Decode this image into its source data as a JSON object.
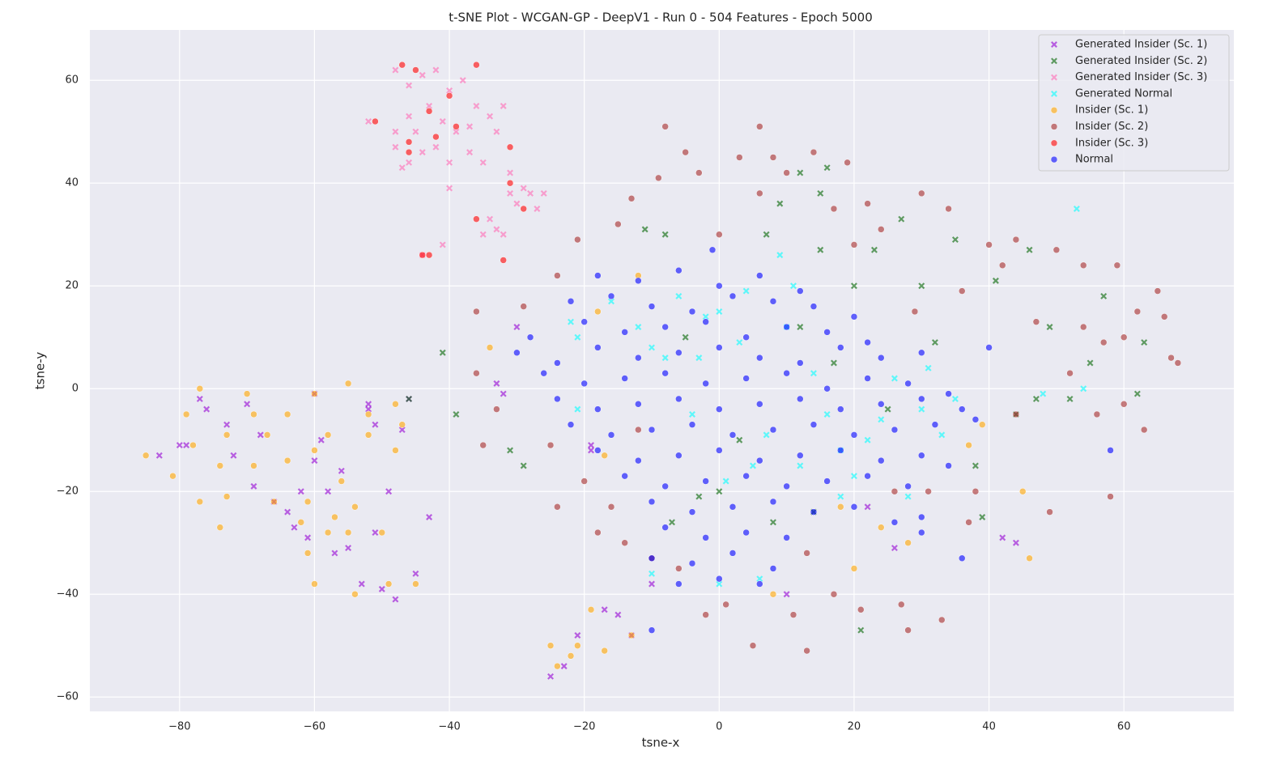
{
  "chart_data": {
    "type": "scatter",
    "title": "t-SNE Plot - WCGAN-GP - DeepV1 - Run 0 - 504 Features - Epoch 5000",
    "xlabel": "tsne-x",
    "ylabel": "tsne-y",
    "xlim": [
      -93.3,
      76.3
    ],
    "ylim": [
      -62.8,
      69.8
    ],
    "xticks": [
      {
        "value": -80,
        "label": "−80"
      },
      {
        "value": -60,
        "label": "−60"
      },
      {
        "value": -40,
        "label": "−40"
      },
      {
        "value": -20,
        "label": "−20"
      },
      0,
      20,
      40,
      60
    ],
    "yticks": [
      {
        "value": -60,
        "label": "−60"
      },
      {
        "value": -40,
        "label": "−40"
      },
      {
        "value": -20,
        "label": "−20"
      },
      0,
      20,
      40,
      60
    ],
    "grid": true,
    "legend": "upper right",
    "series": [
      {
        "name": "Generated Insider (Sc. 1)",
        "color": "#9400d3",
        "marker": "x",
        "x": [
          -83,
          -80,
          -77,
          -76,
          -73,
          -72,
          -70,
          -69,
          -68,
          -66,
          -64,
          -63,
          -62,
          -61,
          -60,
          -60,
          -59,
          -58,
          -57,
          -56,
          -55,
          -53,
          -52,
          -51,
          -51,
          -50,
          -49,
          -48,
          -46,
          -45,
          -43,
          -52,
          -47,
          -25,
          -23,
          -21,
          -17,
          -15,
          -13,
          -10,
          -19,
          10,
          22,
          26,
          42,
          44,
          -33,
          -32,
          -30,
          -19,
          -79
        ],
        "y": [
          -13,
          -11,
          -2,
          -4,
          -7,
          -13,
          -3,
          -19,
          -9,
          -22,
          -24,
          -27,
          -20,
          -29,
          -14,
          -1,
          -10,
          -20,
          -32,
          -16,
          -31,
          -38,
          -3,
          -7,
          -28,
          -39,
          -20,
          -41,
          -2,
          -36,
          -25,
          -4,
          -8,
          -56,
          -54,
          -48,
          -43,
          -44,
          -48,
          -38,
          -11,
          -40,
          -23,
          -31,
          -29,
          -30,
          1,
          -1,
          12,
          -12,
          -11
        ]
      },
      {
        "name": "Generated Insider (Sc. 2)",
        "color": "#006400",
        "marker": "x",
        "x": [
          -41,
          -39,
          -31,
          -29,
          -46,
          -11,
          -8,
          -5,
          -3,
          0,
          3,
          7,
          9,
          12,
          12,
          15,
          15,
          16,
          17,
          20,
          21,
          23,
          25,
          27,
          30,
          32,
          35,
          38,
          39,
          41,
          44,
          46,
          47,
          49,
          52,
          55,
          57,
          62,
          63,
          14,
          8,
          -7
        ],
        "y": [
          7,
          -5,
          -12,
          -15,
          -2,
          31,
          30,
          10,
          -21,
          -20,
          -10,
          30,
          36,
          42,
          12,
          38,
          27,
          43,
          5,
          20,
          -47,
          27,
          -4,
          33,
          20,
          9,
          29,
          -15,
          -25,
          21,
          -5,
          27,
          -2,
          12,
          -2,
          5,
          18,
          -1,
          9,
          -24,
          -26,
          -26
        ]
      },
      {
        "name": "Generated Insider (Sc. 3)",
        "color": "#ff69b4",
        "marker": "x",
        "x": [
          -48,
          -46,
          -44,
          -42,
          -40,
          -43,
          -41,
          -38,
          -36,
          -39,
          -46,
          -48,
          -44,
          -42,
          -46,
          -40,
          -37,
          -35,
          -33,
          -34,
          -32,
          -45,
          -47,
          -40,
          -41,
          -31,
          -30,
          -28,
          -27,
          -33,
          -35,
          -34,
          -32,
          -29,
          -26,
          -52,
          -48,
          -37,
          -31,
          -44
        ],
        "y": [
          62,
          59,
          61,
          62,
          58,
          55,
          52,
          60,
          55,
          50,
          53,
          50,
          46,
          47,
          44,
          44,
          46,
          44,
          50,
          53,
          55,
          50,
          43,
          39,
          28,
          38,
          36,
          38,
          35,
          31,
          30,
          33,
          30,
          39,
          38,
          52,
          47,
          51,
          42,
          26
        ]
      },
      {
        "name": "Generated Normal",
        "color": "#00ffff",
        "marker": "x",
        "x": [
          -22,
          -21,
          -16,
          -12,
          -8,
          -6,
          -4,
          -2,
          0,
          1,
          3,
          5,
          7,
          9,
          10,
          12,
          14,
          16,
          18,
          20,
          22,
          24,
          26,
          28,
          30,
          33,
          35,
          18,
          6,
          -10,
          0,
          53,
          48,
          54,
          -21,
          -10,
          -3,
          4,
          11,
          31
        ],
        "y": [
          13,
          10,
          17,
          12,
          6,
          18,
          -5,
          14,
          15,
          -18,
          9,
          -15,
          -9,
          26,
          12,
          -15,
          3,
          -5,
          -12,
          -17,
          -10,
          -6,
          2,
          -21,
          -4,
          -9,
          -2,
          -21,
          -37,
          -36,
          -38,
          35,
          -1,
          0,
          -4,
          8,
          6,
          19,
          20,
          4
        ]
      },
      {
        "name": "Insider (Sc. 1)",
        "color": "#ffa500",
        "marker": "o",
        "x": [
          -85,
          -81,
          -79,
          -78,
          -77,
          -77,
          -74,
          -74,
          -73,
          -73,
          -70,
          -69,
          -69,
          -67,
          -66,
          -64,
          -64,
          -62,
          -61,
          -61,
          -60,
          -60,
          -60,
          -58,
          -58,
          -57,
          -56,
          -55,
          -55,
          -54,
          -54,
          -52,
          -52,
          -50,
          -49,
          -48,
          -47,
          -48,
          -45,
          -34,
          -24,
          -25,
          -22,
          -21,
          -19,
          -17,
          -13,
          -12,
          -18,
          -17,
          8,
          18,
          20,
          24,
          28,
          37,
          39,
          45,
          46
        ],
        "y": [
          -13,
          -17,
          -5,
          -11,
          -22,
          0,
          -15,
          -27,
          -21,
          -9,
          -1,
          -5,
          -15,
          -9,
          -22,
          -5,
          -14,
          -26,
          -32,
          -22,
          -12,
          -1,
          -38,
          -9,
          -28,
          -25,
          -18,
          1,
          -28,
          -23,
          -40,
          -5,
          -9,
          -28,
          -38,
          -3,
          -7,
          -12,
          -38,
          8,
          -54,
          -50,
          -52,
          -50,
          -43,
          -51,
          -48,
          22,
          15,
          -13,
          -40,
          -23,
          -35,
          -27,
          -30,
          -11,
          -7,
          -20,
          -33
        ]
      },
      {
        "name": "Insider (Sc. 2)",
        "color": "#a52a2a",
        "marker": "o",
        "x": [
          -36,
          -36,
          -35,
          -33,
          -29,
          -24,
          -25,
          -24,
          -21,
          -20,
          -18,
          -16,
          -15,
          -14,
          -13,
          -12,
          -10,
          -9,
          -8,
          -6,
          -5,
          -3,
          -2,
          0,
          1,
          3,
          5,
          6,
          6,
          8,
          10,
          11,
          13,
          13,
          14,
          17,
          17,
          19,
          20,
          21,
          22,
          24,
          26,
          27,
          28,
          29,
          30,
          31,
          33,
          34,
          36,
          37,
          38,
          40,
          42,
          44,
          44,
          47,
          49,
          50,
          52,
          54,
          56,
          58,
          59,
          60,
          62,
          63,
          65,
          66,
          67,
          68,
          57,
          54,
          60
        ],
        "y": [
          15,
          3,
          -11,
          -4,
          16,
          22,
          -11,
          -23,
          29,
          -18,
          -28,
          -23,
          32,
          -30,
          37,
          -8,
          -33,
          41,
          51,
          -35,
          46,
          42,
          -44,
          30,
          -42,
          45,
          -50,
          51,
          38,
          45,
          42,
          -44,
          -51,
          -32,
          46,
          35,
          -40,
          44,
          28,
          -43,
          36,
          31,
          -20,
          -42,
          -47,
          15,
          38,
          -20,
          -45,
          35,
          19,
          -26,
          -20,
          28,
          24,
          -5,
          29,
          13,
          -24,
          27,
          3,
          24,
          -5,
          -21,
          24,
          -3,
          15,
          -8,
          19,
          14,
          6,
          5,
          9,
          12,
          10
        ]
      },
      {
        "name": "Insider (Sc. 3)",
        "color": "#ff0000",
        "marker": "o",
        "x": [
          -47,
          -45,
          -36,
          -51,
          -43,
          -40,
          -39,
          -46,
          -46,
          -42,
          -31,
          -31,
          -29,
          -36,
          -32,
          -44,
          -43
        ],
        "y": [
          63,
          62,
          63,
          52,
          54,
          57,
          51,
          48,
          46,
          49,
          47,
          40,
          35,
          33,
          25,
          26,
          26
        ]
      },
      {
        "name": "Normal",
        "color": "#0000ff",
        "marker": "o",
        "x": [
          -18,
          -12,
          -6,
          0,
          6,
          12,
          -22,
          -16,
          -10,
          -4,
          2,
          8,
          14,
          20,
          -28,
          -20,
          -14,
          -8,
          -2,
          4,
          10,
          16,
          22,
          -30,
          -24,
          -18,
          -12,
          -6,
          0,
          6,
          12,
          18,
          24,
          30,
          -26,
          -20,
          -14,
          -8,
          -2,
          4,
          10,
          16,
          22,
          28,
          34,
          -24,
          -18,
          -12,
          -6,
          0,
          6,
          12,
          18,
          24,
          30,
          36,
          -22,
          -16,
          -10,
          -4,
          2,
          8,
          14,
          20,
          26,
          32,
          38,
          -18,
          -12,
          -6,
          0,
          6,
          12,
          18,
          24,
          30,
          34,
          -14,
          -8,
          -2,
          4,
          10,
          16,
          22,
          28,
          -10,
          -4,
          2,
          8,
          14,
          20,
          26,
          30,
          -8,
          -2,
          4,
          10,
          30,
          -10,
          -4,
          2,
          8,
          -6,
          0,
          6,
          -1,
          40,
          58,
          36,
          -10
        ],
        "y": [
          22,
          21,
          23,
          20,
          22,
          19,
          17,
          18,
          16,
          15,
          18,
          17,
          16,
          14,
          10,
          13,
          11,
          12,
          13,
          10,
          12,
          11,
          9,
          7,
          5,
          8,
          6,
          7,
          8,
          6,
          5,
          8,
          6,
          7,
          3,
          1,
          2,
          3,
          1,
          2,
          3,
          0,
          2,
          1,
          -1,
          -2,
          -4,
          -3,
          -2,
          -4,
          -3,
          -2,
          -4,
          -3,
          -2,
          -4,
          -7,
          -9,
          -8,
          -7,
          -9,
          -8,
          -7,
          -9,
          -8,
          -7,
          -6,
          -12,
          -14,
          -13,
          -12,
          -14,
          -13,
          -12,
          -14,
          -13,
          -15,
          -17,
          -19,
          -18,
          -17,
          -19,
          -18,
          -17,
          -19,
          -22,
          -24,
          -23,
          -22,
          -24,
          -23,
          -26,
          -25,
          -27,
          -29,
          -28,
          -29,
          -28,
          -33,
          -34,
          -32,
          -35,
          -38,
          -37,
          -38,
          27,
          8,
          -12,
          -33,
          -47
        ]
      }
    ]
  }
}
